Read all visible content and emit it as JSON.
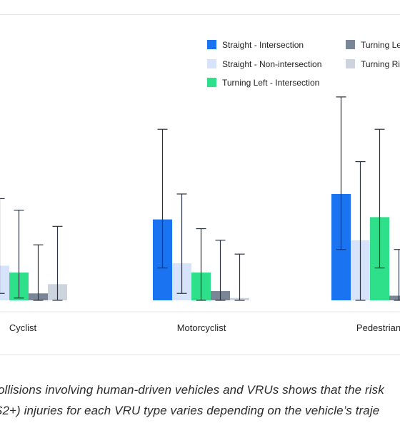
{
  "chart_data": {
    "type": "bar",
    "categories": [
      "Cyclist",
      "Motorcyclist",
      "Pedestrian"
    ],
    "series": [
      {
        "name": "Straight - Intersection",
        "color": "#1a73f0",
        "values": [
          null,
          0.35,
          0.46
        ],
        "err_low": [
          null,
          0.14,
          0.22
        ],
        "err_high": [
          null,
          0.74,
          0.88
        ]
      },
      {
        "name": "Straight - Non-intersection",
        "color": "#d7e2fb",
        "values": [
          0.15,
          0.16,
          0.26
        ],
        "err_low": [
          0.03,
          0.03,
          0.0
        ],
        "err_high": [
          0.44,
          0.46,
          0.6
        ]
      },
      {
        "name": "Turning Left - Intersection",
        "color": "#2fe08b",
        "values": [
          0.12,
          0.12,
          0.36
        ],
        "err_low": [
          0.01,
          0.0,
          0.14
        ],
        "err_high": [
          0.39,
          0.31,
          0.74
        ]
      },
      {
        "name": "Turning Left - Non-intersection",
        "color": "#7a8696",
        "values": [
          0.03,
          0.04,
          0.02
        ],
        "err_low": [
          0.0,
          0.0,
          0.0
        ],
        "err_high": [
          0.24,
          0.26,
          0.22
        ]
      },
      {
        "name": "Turning Right - Intersection",
        "color": "#cdd4de",
        "values": [
          0.07,
          0.01,
          null
        ],
        "err_low": [
          0.0,
          0.0,
          null
        ],
        "err_high": [
          0.32,
          0.2,
          null
        ]
      }
    ],
    "legend_labels_visible": [
      "Straight - Intersection",
      "Straight - Non-intersection",
      "Turning Left - Intersection",
      "Turning Le",
      "Turning Rig"
    ],
    "ylim": [
      0,
      1
    ],
    "legend_position": "top-right",
    "grid": false,
    "title": "",
    "xlabel": "",
    "ylabel": ""
  },
  "caption": {
    "line1": "ollisions involving human-driven vehicles and VRUs shows that the risk",
    "line2": "S2+) injuries for each VRU type varies depending on the vehicle’s traje"
  }
}
